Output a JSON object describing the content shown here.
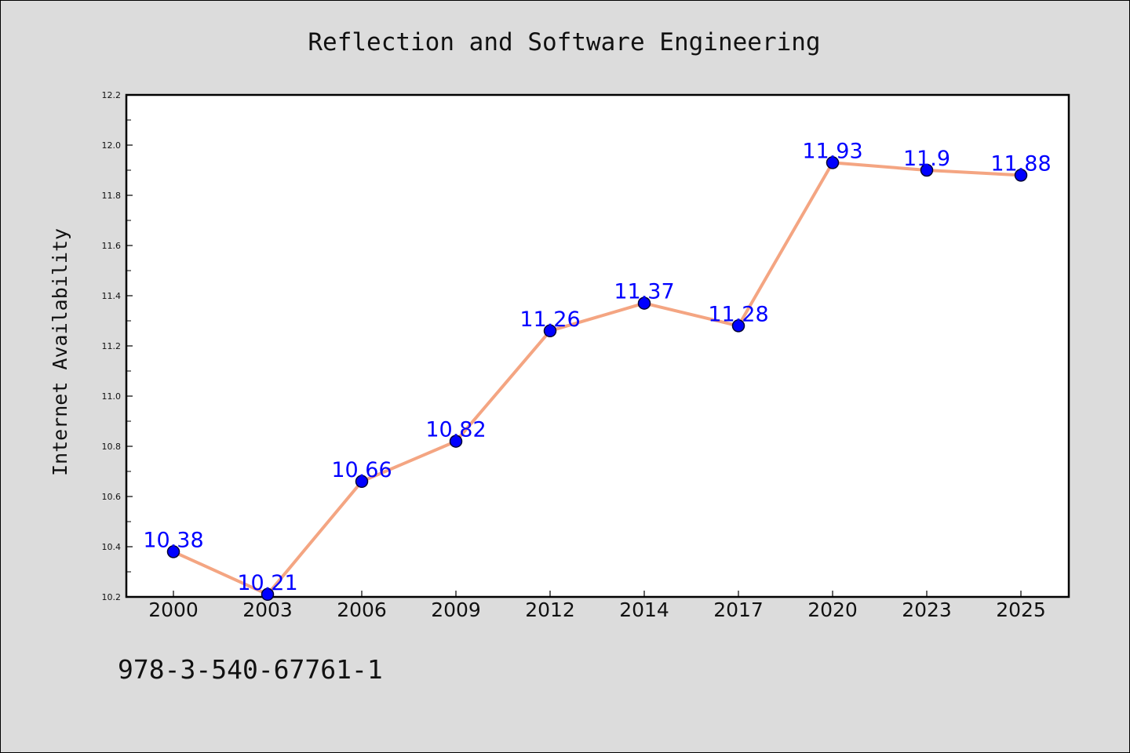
{
  "chart_data": {
    "type": "line",
    "title": "Reflection and Software Engineering",
    "xlabel": "",
    "ylabel": "Internet Availability",
    "categories": [
      "2000",
      "2003",
      "2006",
      "2009",
      "2012",
      "2014",
      "2017",
      "2020",
      "2023",
      "2025"
    ],
    "series": [
      {
        "values": [
          10.38,
          10.21,
          10.66,
          10.82,
          11.26,
          11.37,
          11.28,
          11.93,
          11.9,
          11.88
        ]
      }
    ],
    "data_labels": [
      "10.38",
      "10.21",
      "10.66",
      "10.82",
      "11.26",
      "11.37",
      "11.28",
      "11.93",
      "11.9",
      "11.88"
    ],
    "ylim": [
      10.2,
      12.2
    ],
    "yticks": [
      "10.2",
      "10.4",
      "10.6",
      "10.8",
      "11.0",
      "11.2",
      "11.4",
      "11.6",
      "11.8",
      "12.0",
      "12.2"
    ],
    "grid": false,
    "colors": {
      "line": "#f4a582",
      "marker": "#0000ff",
      "marker_edge": "#000033",
      "data_label": "#0000ff",
      "background": "#dcdcdc",
      "plot_background": "#ffffff"
    }
  },
  "footer": {
    "note": "978-3-540-67761-1"
  }
}
